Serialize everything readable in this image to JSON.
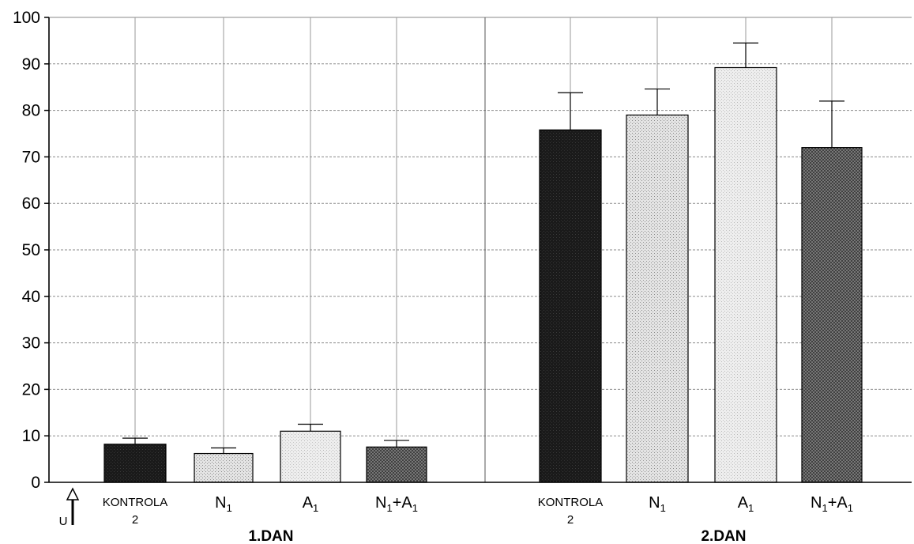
{
  "chart_data": {
    "type": "bar",
    "title": "",
    "xlabel": "",
    "ylabel": "",
    "ylim": [
      0,
      100
    ],
    "yticks": [
      0,
      10,
      20,
      30,
      40,
      50,
      60,
      70,
      80,
      90,
      100
    ],
    "grid": true,
    "y_axis_marker": "U",
    "groups": [
      {
        "label": "1.DAN",
        "bars": [
          {
            "label": "KONTROLA",
            "label_line2": "2",
            "value": 8.2,
            "error": 1.3,
            "pattern": "dark"
          },
          {
            "label": "N",
            "subscript": "1",
            "value": 6.2,
            "error": 1.2,
            "pattern": "light-dots"
          },
          {
            "label": "A",
            "subscript": "1",
            "value": 11.0,
            "error": 1.5,
            "pattern": "light"
          },
          {
            "label": "N+A",
            "subscript": "1",
            "value": 7.6,
            "error": 1.4,
            "pattern": "crosshatch"
          }
        ]
      },
      {
        "label": "2.DAN",
        "bars": [
          {
            "label": "KONTROLA",
            "label_line2": "2",
            "value": 75.8,
            "error": 8.0,
            "pattern": "dark"
          },
          {
            "label": "N",
            "subscript": "1",
            "value": 79.0,
            "error": 5.6,
            "pattern": "light-dots"
          },
          {
            "label": "A",
            "subscript": "1",
            "value": 89.2,
            "error": 5.3,
            "pattern": "light"
          },
          {
            "label": "N+A",
            "subscript": "1",
            "value": 72.0,
            "error": 10.0,
            "pattern": "crosshatch"
          }
        ]
      }
    ],
    "colors": {
      "dark": "#141414",
      "light-dots": "#dcdcdc",
      "light": "#e8e8e8",
      "crosshatch": "#6a6a6a",
      "grid": "#8a8a8a",
      "axis": "#000000"
    }
  }
}
